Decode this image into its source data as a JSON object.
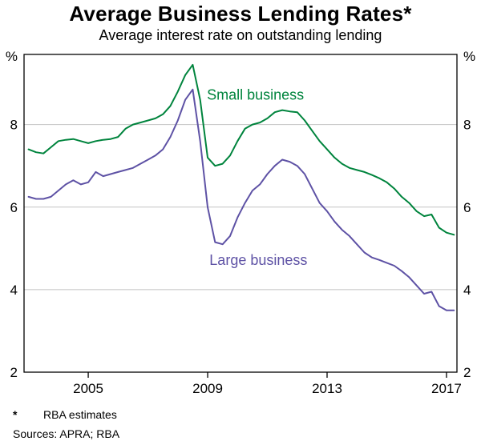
{
  "title": "Average Business Lending Rates*",
  "subtitle": "Average interest rate on outstanding lending",
  "footnote": {
    "marker": "*",
    "text": "RBA estimates",
    "sources": "Sources: APRA; RBA"
  },
  "chart_data": {
    "type": "line",
    "title": "Average Business Lending Rates",
    "subtitle": "Average interest rate on outstanding lending",
    "unit_label": "%",
    "xlim": [
      2002.85,
      2017.35
    ],
    "ylim": [
      2,
      9.7
    ],
    "xticks": [
      2005,
      2009,
      2013,
      2017
    ],
    "yticks": [
      2,
      4,
      6,
      8
    ],
    "grid": "horizontal",
    "grid_color": "#c2c2c2",
    "frame_color": "#000000",
    "x": [
      2003.0,
      2003.25,
      2003.5,
      2003.75,
      2004.0,
      2004.25,
      2004.5,
      2004.75,
      2005.0,
      2005.25,
      2005.5,
      2005.75,
      2006.0,
      2006.25,
      2006.5,
      2006.75,
      2007.0,
      2007.25,
      2007.5,
      2007.75,
      2008.0,
      2008.25,
      2008.5,
      2008.75,
      2009.0,
      2009.25,
      2009.5,
      2009.75,
      2010.0,
      2010.25,
      2010.5,
      2010.75,
      2011.0,
      2011.25,
      2011.5,
      2011.75,
      2012.0,
      2012.25,
      2012.5,
      2012.75,
      2013.0,
      2013.25,
      2013.5,
      2013.75,
      2014.0,
      2014.25,
      2014.5,
      2014.75,
      2015.0,
      2015.25,
      2015.5,
      2015.75,
      2016.0,
      2016.25,
      2016.5,
      2016.75,
      2017.0,
      2017.25
    ],
    "series": [
      {
        "name": "Small business",
        "color": "#00843d",
        "label_pos": [
          2010.6,
          8.6
        ],
        "values": [
          7.4,
          7.33,
          7.3,
          7.45,
          7.6,
          7.63,
          7.65,
          7.6,
          7.55,
          7.6,
          7.63,
          7.65,
          7.7,
          7.9,
          8.0,
          8.05,
          8.1,
          8.15,
          8.25,
          8.45,
          8.8,
          9.2,
          9.45,
          8.6,
          7.2,
          7.0,
          7.05,
          7.25,
          7.6,
          7.9,
          8.0,
          8.05,
          8.15,
          8.3,
          8.35,
          8.32,
          8.3,
          8.1,
          7.85,
          7.6,
          7.4,
          7.2,
          7.05,
          6.95,
          6.9,
          6.85,
          6.78,
          6.7,
          6.6,
          6.45,
          6.25,
          6.1,
          5.9,
          5.78,
          5.82,
          5.5,
          5.38,
          5.33
        ]
      },
      {
        "name": "Large business",
        "color": "#5e52a5",
        "label_pos": [
          2010.7,
          4.6
        ],
        "values": [
          6.25,
          6.2,
          6.2,
          6.25,
          6.4,
          6.55,
          6.65,
          6.55,
          6.6,
          6.85,
          6.75,
          6.8,
          6.85,
          6.9,
          6.95,
          7.05,
          7.15,
          7.25,
          7.4,
          7.7,
          8.1,
          8.6,
          8.85,
          7.6,
          6.0,
          5.15,
          5.1,
          5.3,
          5.75,
          6.1,
          6.4,
          6.55,
          6.8,
          7.0,
          7.15,
          7.1,
          7.0,
          6.8,
          6.45,
          6.1,
          5.9,
          5.65,
          5.45,
          5.3,
          5.1,
          4.9,
          4.78,
          4.72,
          4.65,
          4.58,
          4.45,
          4.3,
          4.1,
          3.9,
          3.95,
          3.6,
          3.5,
          3.5
        ]
      }
    ]
  }
}
